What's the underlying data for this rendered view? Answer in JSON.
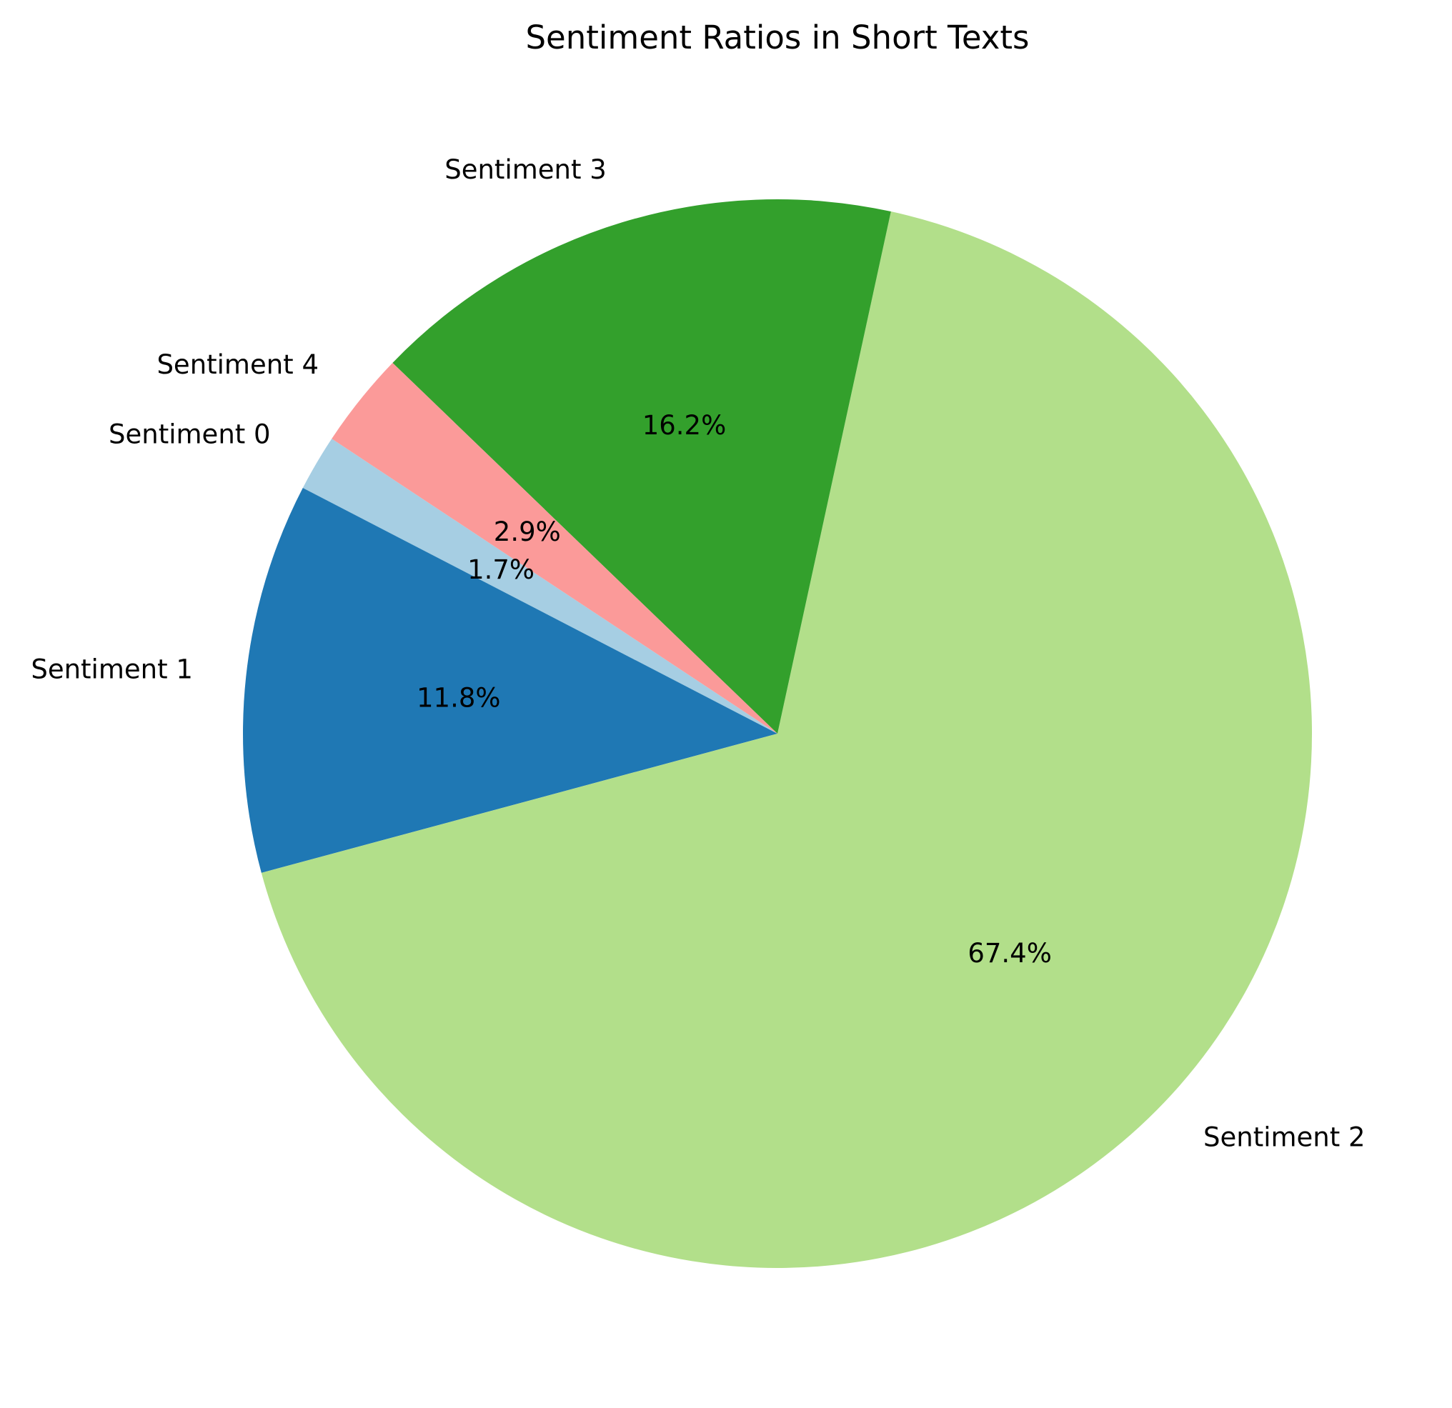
{
  "chart_data": {
    "type": "pie",
    "title": "Sentiment Ratios in Short Texts",
    "start_angle_deg": 146.5,
    "direction": "counterclockwise",
    "slices": [
      {
        "label": "Sentiment 0",
        "value": 1.7,
        "pct_label": "1.7%",
        "color": "#a6cee3"
      },
      {
        "label": "Sentiment 1",
        "value": 11.8,
        "pct_label": "11.8%",
        "color": "#1f78b4"
      },
      {
        "label": "Sentiment 2",
        "value": 67.4,
        "pct_label": "67.4%",
        "color": "#b2df8a"
      },
      {
        "label": "Sentiment 3",
        "value": 16.2,
        "pct_label": "16.2%",
        "color": "#33a02c"
      },
      {
        "label": "Sentiment 4",
        "value": 2.9,
        "pct_label": "2.9%",
        "color": "#fb9a99"
      }
    ]
  }
}
